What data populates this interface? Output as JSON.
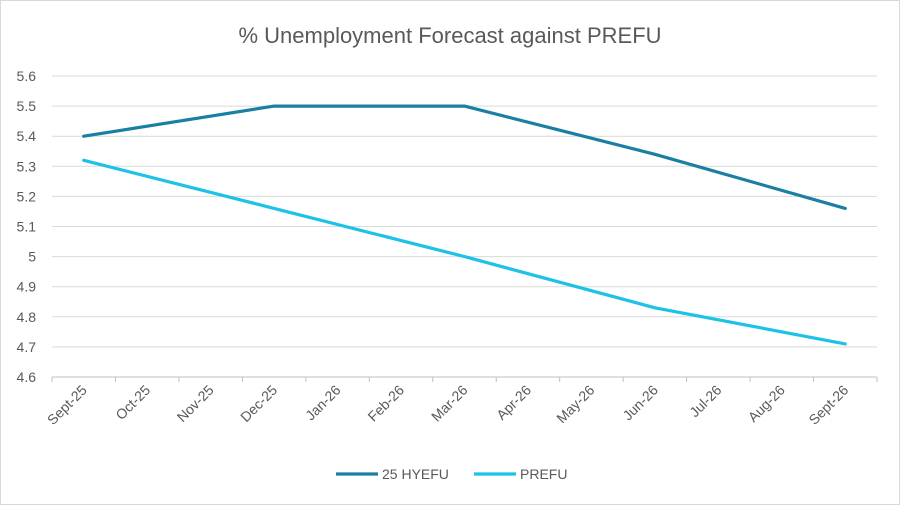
{
  "chart_data": {
    "type": "line",
    "title": "% Unemployment Forecast against PREFU",
    "xlabel": "",
    "ylabel": "",
    "categories": [
      "Sept-25",
      "Oct-25",
      "Nov-25",
      "Dec-25",
      "Jan-26",
      "Feb-26",
      "Mar-26",
      "Apr-26",
      "May-26",
      "Jun-26",
      "Jul-26",
      "Aug-26",
      "Sept-26"
    ],
    "ylim": [
      4.6,
      5.6
    ],
    "yticks": [
      "4.6",
      "4.7",
      "4.8",
      "4.9",
      "5",
      "5.1",
      "5.2",
      "5.3",
      "5.4",
      "5.5",
      "5.6"
    ],
    "grid": true,
    "legend_position": "bottom",
    "series": [
      {
        "name": "25 HYEFU",
        "color": "#1b7fa3",
        "points": [
          {
            "category": "Sept-25",
            "value": 5.4
          },
          {
            "category": "Dec-25",
            "value": 5.5
          },
          {
            "category": "Mar-26",
            "value": 5.5
          },
          {
            "category": "Jun-26",
            "value": 5.34
          },
          {
            "category": "Sept-26",
            "value": 5.16
          }
        ]
      },
      {
        "name": "PREFU",
        "color": "#1ec2e6",
        "points": [
          {
            "category": "Sept-25",
            "value": 5.32
          },
          {
            "category": "Dec-25",
            "value": 5.16
          },
          {
            "category": "Mar-26",
            "value": 5.0
          },
          {
            "category": "Jun-26",
            "value": 4.83
          },
          {
            "category": "Sept-26",
            "value": 4.71
          }
        ]
      }
    ]
  }
}
